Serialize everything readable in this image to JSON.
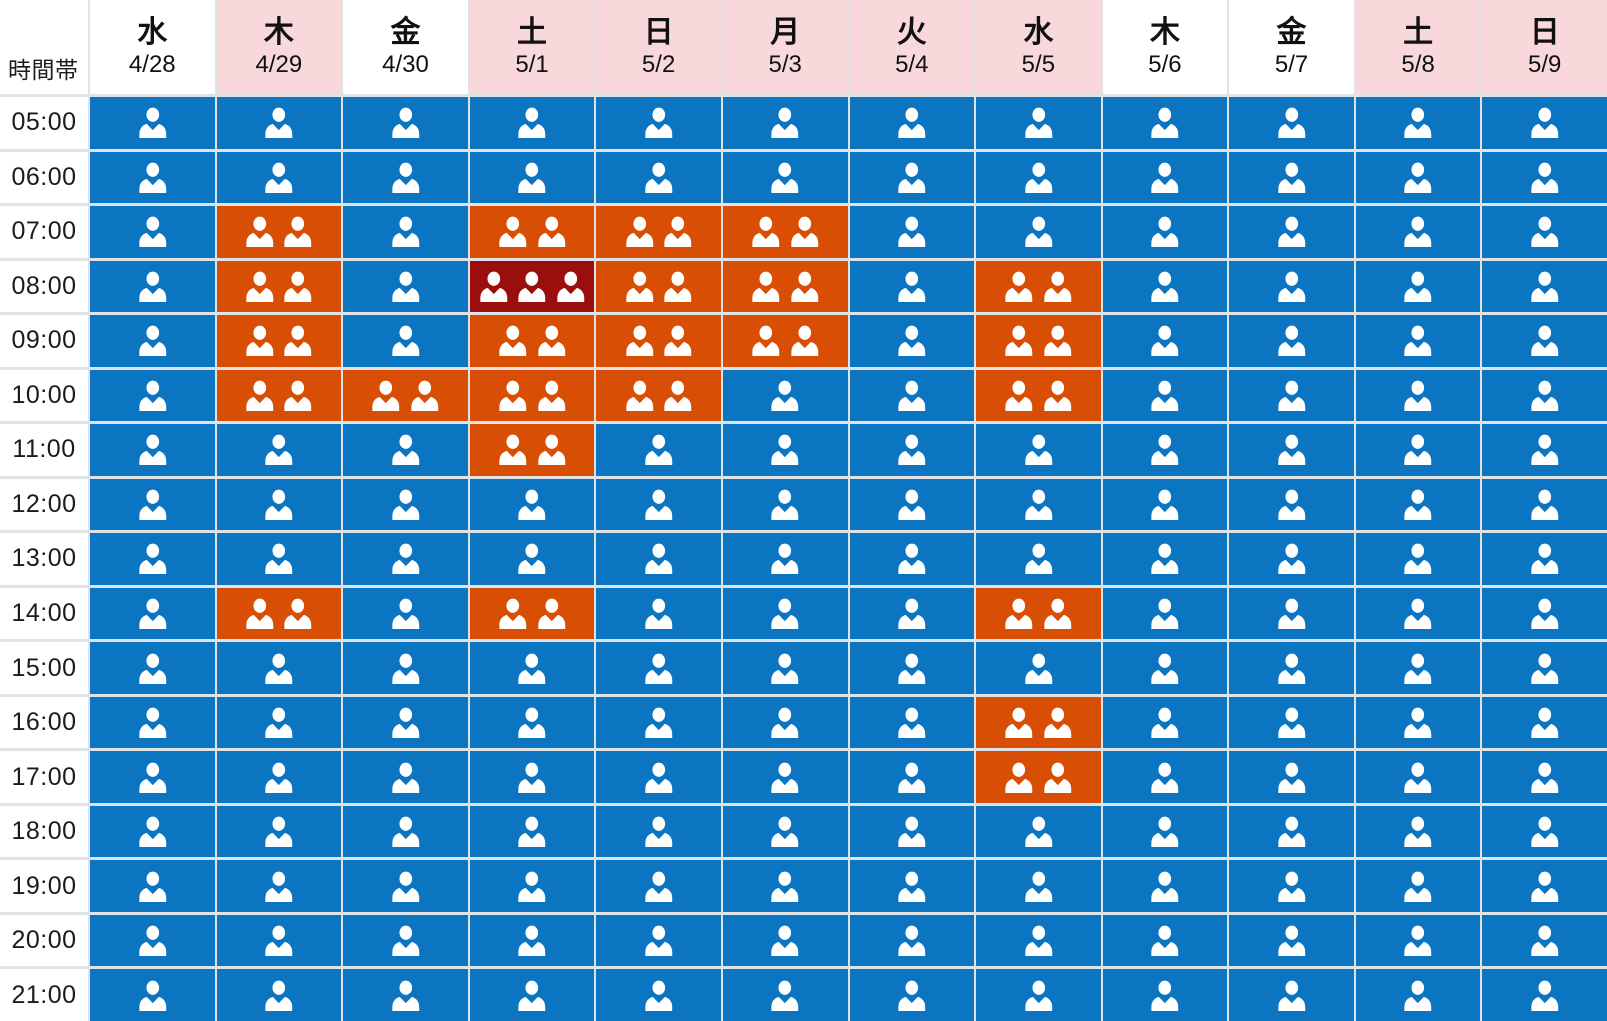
{
  "chart_data": {
    "type": "heatmap",
    "corner_label": "時間帯",
    "xlabel": "",
    "ylabel": "",
    "legend_position": "none",
    "grid": true,
    "cell_icon": "person-icon",
    "value_encoding": "number of person icons per cell (1, 2 or 3)",
    "columns": [
      {
        "day": "水",
        "date": "4/28",
        "holiday": false
      },
      {
        "day": "木",
        "date": "4/29",
        "holiday": true
      },
      {
        "day": "金",
        "date": "4/30",
        "holiday": false
      },
      {
        "day": "土",
        "date": "5/1",
        "holiday": true
      },
      {
        "day": "日",
        "date": "5/2",
        "holiday": true
      },
      {
        "day": "月",
        "date": "5/3",
        "holiday": true
      },
      {
        "day": "火",
        "date": "5/4",
        "holiday": true
      },
      {
        "day": "水",
        "date": "5/5",
        "holiday": true
      },
      {
        "day": "木",
        "date": "5/6",
        "holiday": false
      },
      {
        "day": "金",
        "date": "5/7",
        "holiday": false
      },
      {
        "day": "土",
        "date": "5/8",
        "holiday": true
      },
      {
        "day": "日",
        "date": "5/9",
        "holiday": true
      }
    ],
    "rows": [
      "05:00",
      "06:00",
      "07:00",
      "08:00",
      "09:00",
      "10:00",
      "11:00",
      "12:00",
      "13:00",
      "14:00",
      "15:00",
      "16:00",
      "17:00",
      "18:00",
      "19:00",
      "20:00",
      "21:00"
    ],
    "values": [
      [
        1,
        1,
        1,
        1,
        1,
        1,
        1,
        1,
        1,
        1,
        1,
        1
      ],
      [
        1,
        1,
        1,
        1,
        1,
        1,
        1,
        1,
        1,
        1,
        1,
        1
      ],
      [
        1,
        2,
        1,
        2,
        2,
        2,
        1,
        1,
        1,
        1,
        1,
        1
      ],
      [
        1,
        2,
        1,
        3,
        2,
        2,
        1,
        2,
        1,
        1,
        1,
        1
      ],
      [
        1,
        2,
        1,
        2,
        2,
        2,
        1,
        2,
        1,
        1,
        1,
        1
      ],
      [
        1,
        2,
        2,
        2,
        2,
        1,
        1,
        2,
        1,
        1,
        1,
        1
      ],
      [
        1,
        1,
        1,
        2,
        1,
        1,
        1,
        1,
        1,
        1,
        1,
        1
      ],
      [
        1,
        1,
        1,
        1,
        1,
        1,
        1,
        1,
        1,
        1,
        1,
        1
      ],
      [
        1,
        1,
        1,
        1,
        1,
        1,
        1,
        1,
        1,
        1,
        1,
        1
      ],
      [
        1,
        2,
        1,
        2,
        1,
        1,
        1,
        2,
        1,
        1,
        1,
        1
      ],
      [
        1,
        1,
        1,
        1,
        1,
        1,
        1,
        1,
        1,
        1,
        1,
        1
      ],
      [
        1,
        1,
        1,
        1,
        1,
        1,
        1,
        2,
        1,
        1,
        1,
        1
      ],
      [
        1,
        1,
        1,
        1,
        1,
        1,
        1,
        2,
        1,
        1,
        1,
        1
      ],
      [
        1,
        1,
        1,
        1,
        1,
        1,
        1,
        1,
        1,
        1,
        1,
        1
      ],
      [
        1,
        1,
        1,
        1,
        1,
        1,
        1,
        1,
        1,
        1,
        1,
        1
      ],
      [
        1,
        1,
        1,
        1,
        1,
        1,
        1,
        1,
        1,
        1,
        1,
        1
      ],
      [
        1,
        1,
        1,
        1,
        1,
        1,
        1,
        1,
        1,
        1,
        1,
        1
      ]
    ],
    "colors": {
      "level_1": "#0b75c2",
      "level_2": "#d84e04",
      "level_3": "#9b0e0e",
      "holiday_header_bg": "#f9d8db",
      "weekday_header_bg": "#ffffff",
      "icon": "#ffffff",
      "grid_line": "#dfe3e6"
    }
  }
}
